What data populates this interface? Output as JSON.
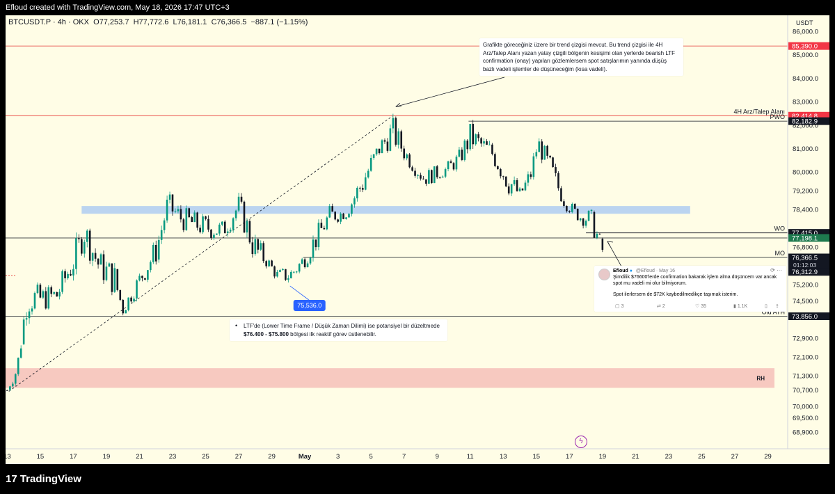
{
  "header": {
    "watermark_text": "Efloud created with TradingView.com, May 18, 2026 17:47 UTC+3"
  },
  "symbol": {
    "title": "BTCUSDT.P · 4h · OKX",
    "open_label": "O",
    "open": "77,253.7",
    "high_label": "H",
    "high": "77,772.6",
    "low_label": "L",
    "low": "76,181.1",
    "close_label": "C",
    "close": "76,366.5",
    "change": "−887.1 (−1.15%)"
  },
  "axis": {
    "currency": "USDT"
  },
  "colors": {
    "up": "#089981",
    "down": "#131722",
    "red_line": "#e53935",
    "zone_blue": "#bbd4f0",
    "zone_red": "#f7c9c0",
    "label_dark": "#131722",
    "label_red": "#f23645",
    "label_green": "#1e7a4f",
    "label_blue": "#2962ff"
  },
  "chart_data": {
    "type": "candlestick",
    "y_range": [
      68200,
      86700
    ],
    "y_ticks": [
      {
        "value": 86000,
        "label": "86,000.0"
      },
      {
        "value": 85000,
        "label": "85,000.0"
      },
      {
        "value": 84000,
        "label": "84,000.0"
      },
      {
        "value": 83000,
        "label": "83,000.0"
      },
      {
        "value": 82000,
        "label": "82,000.0"
      },
      {
        "value": 81000,
        "label": "81,000.0"
      },
      {
        "value": 80000,
        "label": "80,000.0"
      },
      {
        "value": 79200,
        "label": "79,200.0"
      },
      {
        "value": 78400,
        "label": "78,400.0"
      },
      {
        "value": 76800,
        "label": "76,800.0"
      },
      {
        "value": 75200,
        "label": "75,200.0"
      },
      {
        "value": 74500,
        "label": "74,500.0"
      },
      {
        "value": 72900,
        "label": "72,900.0"
      },
      {
        "value": 72100,
        "label": "72,100.0"
      },
      {
        "value": 71300,
        "label": "71,300.0"
      },
      {
        "value": 70700,
        "label": "70,700.0"
      },
      {
        "value": 70000,
        "label": "70,000.0"
      },
      {
        "value": 69500,
        "label": "69,500.0"
      },
      {
        "value": 68900,
        "label": "68,900.0"
      }
    ],
    "x_ticks": [
      {
        "day": 0,
        "label": "13"
      },
      {
        "day": 2,
        "label": "15"
      },
      {
        "day": 4,
        "label": "17"
      },
      {
        "day": 6,
        "label": "19"
      },
      {
        "day": 8,
        "label": "21"
      },
      {
        "day": 10,
        "label": "23"
      },
      {
        "day": 12,
        "label": "25"
      },
      {
        "day": 14,
        "label": "27"
      },
      {
        "day": 16,
        "label": "29"
      },
      {
        "day": 18,
        "label": "May",
        "bold": true
      },
      {
        "day": 20,
        "label": "3"
      },
      {
        "day": 22,
        "label": "5"
      },
      {
        "day": 24,
        "label": "7"
      },
      {
        "day": 26,
        "label": "9"
      },
      {
        "day": 28,
        "label": "11"
      },
      {
        "day": 30,
        "label": "13"
      },
      {
        "day": 32,
        "label": "15"
      },
      {
        "day": 34,
        "label": "17"
      },
      {
        "day": 36,
        "label": "19"
      },
      {
        "day": 38,
        "label": "21"
      },
      {
        "day": 40,
        "label": "23"
      },
      {
        "day": 42,
        "label": "25"
      },
      {
        "day": 44,
        "label": "27"
      },
      {
        "day": 46,
        "label": "29"
      }
    ],
    "x_day_range": [
      -0.1,
      47.2
    ],
    "price_labels": [
      {
        "value": 85390,
        "label": "85,390.0",
        "style": "red"
      },
      {
        "value": 82414.8,
        "label": "82,414.8",
        "style": "red"
      },
      {
        "value": 82182.9,
        "label": "82,182.9",
        "style": "dark"
      },
      {
        "value": 77415,
        "label": "77,415.0",
        "style": "dark"
      },
      {
        "value": 77198.1,
        "label": "77,198.1",
        "style": "green"
      },
      {
        "value": 76366.5,
        "label": "76,366.5",
        "style": "dark",
        "sub": "01:12:03"
      },
      {
        "value": 75750,
        "label": "76,312.9",
        "style": "dark"
      },
      {
        "value": 73856,
        "label": "73,856.0",
        "style": "dark"
      }
    ],
    "levels": [
      {
        "value": 85390,
        "color": "red",
        "from_day": -0.1
      },
      {
        "value": 82414.8,
        "color": "red",
        "from_day": -0.1,
        "label": "4H Arz/Talep Alanı"
      },
      {
        "value": 82182.9,
        "color": "dark",
        "from_day": 27.9,
        "label": "PWO"
      },
      {
        "value": 77415,
        "color": "dark",
        "from_day": 35.0,
        "label": "WO"
      },
      {
        "value": 77198.1,
        "color": "dark",
        "from_day": -0.1
      },
      {
        "value": 76366.5,
        "color": "dark",
        "from_day": 17.9,
        "label": "MO"
      },
      {
        "value": 73856,
        "color": "dark",
        "from_day": -0.1,
        "label": "Old ATH"
      }
    ],
    "zones": [
      {
        "low": 78230,
        "high": 78560,
        "from_day": 4.5,
        "to_day": 41.3,
        "color": "blue"
      },
      {
        "low": 70800,
        "high": 71640,
        "from_day": -0.1,
        "to_day": 46.4,
        "color": "red",
        "label": "RH"
      }
    ],
    "trendline": {
      "from": [
        0.1,
        70650
      ],
      "to": [
        23.3,
        82400
      ]
    },
    "marker_label": {
      "day": 17.1,
      "value": 75536,
      "label": "75,536.0"
    },
    "anchors": [
      {
        "day": 12.0,
        "high": 78700,
        "low": 76000
      },
      {
        "day": 0.0,
        "high": 70800,
        "low": 70600
      },
      {
        "day": 0.6,
        "high": 72200,
        "low": 71000
      },
      {
        "day": 1.2,
        "high": 75800,
        "low": 73500
      },
      {
        "day": 2.0,
        "high": 75400,
        "low": 73800
      },
      {
        "day": 3.0,
        "high": 75500,
        "low": 74000
      },
      {
        "day": 4.3,
        "high": 77800,
        "low": 75500
      },
      {
        "day": 4.6,
        "high": 78600,
        "low": 76500
      },
      {
        "day": 5.5,
        "high": 77000,
        "low": 75200
      },
      {
        "day": 6.5,
        "high": 76500,
        "low": 74300
      },
      {
        "day": 7.0,
        "high": 74600,
        "low": 73700
      },
      {
        "day": 8.0,
        "high": 76000,
        "low": 74800
      },
      {
        "day": 9.0,
        "high": 77500,
        "low": 75800
      },
      {
        "day": 9.7,
        "high": 79400,
        "low": 77800
      },
      {
        "day": 10.5,
        "high": 78800,
        "low": 77300
      },
      {
        "day": 11.5,
        "high": 78500,
        "low": 77000
      },
      {
        "day": 13.0,
        "high": 78200,
        "low": 76800
      },
      {
        "day": 14.0,
        "high": 79300,
        "low": 77800
      },
      {
        "day": 15.0,
        "high": 77800,
        "low": 75600
      },
      {
        "day": 15.8,
        "high": 76500,
        "low": 75800
      },
      {
        "day": 16.3,
        "high": 76000,
        "low": 75200
      },
      {
        "day": 17.1,
        "high": 76200,
        "low": 75000
      },
      {
        "day": 18.0,
        "high": 76800,
        "low": 75800
      },
      {
        "day": 18.5,
        "high": 77700,
        "low": 76200
      },
      {
        "day": 19.5,
        "high": 78800,
        "low": 77500
      },
      {
        "day": 20.5,
        "high": 78600,
        "low": 77900
      },
      {
        "day": 21.5,
        "high": 80600,
        "low": 78600
      },
      {
        "day": 22.5,
        "high": 81600,
        "low": 80400
      },
      {
        "day": 23.3,
        "high": 82700,
        "low": 80800
      },
      {
        "day": 24.2,
        "high": 81200,
        "low": 80100
      },
      {
        "day": 25.2,
        "high": 80300,
        "low": 79200
      },
      {
        "day": 26.5,
        "high": 80500,
        "low": 79700
      },
      {
        "day": 27.3,
        "high": 81100,
        "low": 80000
      },
      {
        "day": 28.0,
        "high": 82400,
        "low": 80600
      },
      {
        "day": 28.6,
        "high": 81900,
        "low": 80500
      },
      {
        "day": 29.3,
        "high": 81500,
        "low": 80200
      },
      {
        "day": 30.3,
        "high": 80600,
        "low": 78700
      },
      {
        "day": 31.0,
        "high": 79500,
        "low": 78600
      },
      {
        "day": 31.6,
        "high": 80500,
        "low": 79000
      },
      {
        "day": 32.1,
        "high": 81800,
        "low": 80700
      },
      {
        "day": 32.9,
        "high": 80900,
        "low": 79200
      },
      {
        "day": 33.7,
        "high": 79200,
        "low": 78300
      },
      {
        "day": 34.6,
        "high": 78500,
        "low": 77700
      },
      {
        "day": 35.3,
        "high": 78700,
        "low": 77300
      },
      {
        "day": 35.8,
        "high": 77700,
        "low": 76400
      },
      {
        "day": 36.1,
        "high": 76900,
        "low": 76100
      }
    ],
    "last_candle": {
      "day": 36.1,
      "open": 76700,
      "close": 76366.5
    }
  },
  "annotations": {
    "top_note": "Grafikte göreceğiniz üzere bir trend çizgisi mevcut. Bu trend çizgisi ile 4H Arz/Talep Alanı yazan yatay çizgili bölgenin kesişimi olan yerlerde bearish LTF confirmation (onay) yapıları gözlemlersem spot satışlarımın yanında düşüş bazlı vadeli işlemler de düşüneceğim (kısa vadeli).",
    "ltf_prefix": "LTF'de (Lower Time Frame / Düşük Zaman Dilimi) ise potansiyel bir düzeltmede ",
    "ltf_range": "$76.400 - $75.800",
    "ltf_suffix": " bölgesi ilk reaktif görev üstlenebilir.",
    "bullet": "•"
  },
  "tweet": {
    "name": "Efloud",
    "handle": "@Efloud · May 16",
    "line1": "Şimdilik $76600'lerde confirmation bakarak işlem alma düşüncem var ancak spot mu vadeli mi olur bilmiyorum.",
    "line2": "Spot ilerlersem de $72K kaybedilmedikçe taşımak isterim.",
    "replies": "3",
    "reposts": "2",
    "likes": "35",
    "views": "1.1K",
    "more": "⟳ ···"
  },
  "brand": {
    "logo_text": "17 TradingView"
  },
  "icons": {
    "lightning": "lightning-icon",
    "bookmark": "bookmark-icon",
    "share": "share-icon"
  }
}
